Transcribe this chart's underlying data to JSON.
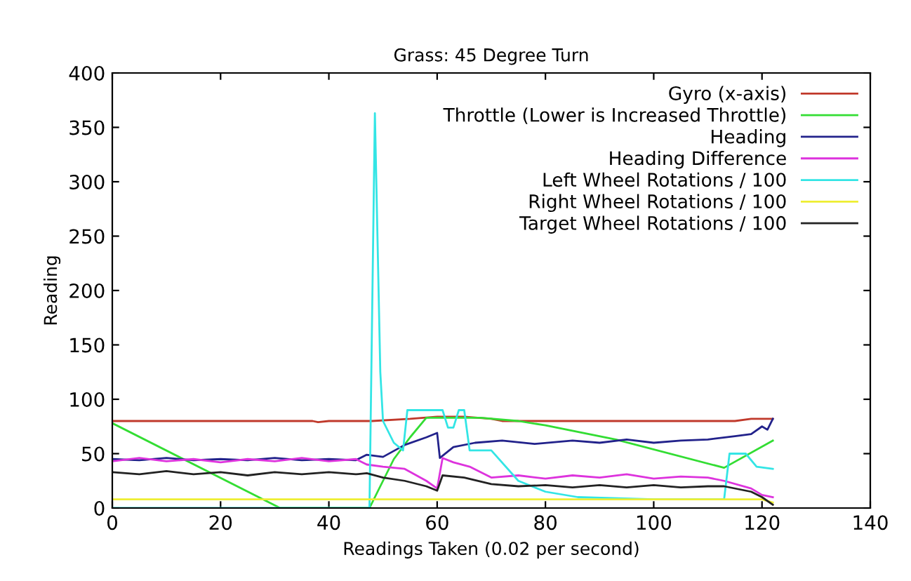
{
  "chart_data": {
    "type": "line",
    "title": "Grass: 45 Degree Turn",
    "xlabel": "Readings Taken (0.02 per second)",
    "ylabel": "Reading",
    "xlim": [
      0,
      140
    ],
    "ylim": [
      0,
      400
    ],
    "xticks": [
      0,
      20,
      40,
      60,
      80,
      100,
      120,
      140
    ],
    "yticks": [
      0,
      50,
      100,
      150,
      200,
      250,
      300,
      350,
      400
    ],
    "grid": false,
    "legend": "top right",
    "marker": "none",
    "line_style": "solid",
    "series": [
      {
        "name": "Gyro (x-axis)",
        "color": "#c0392b",
        "x": [
          0,
          37,
          38,
          40,
          48,
          55,
          60,
          65,
          70,
          72,
          80,
          100,
          115,
          118,
          122
        ],
        "values": [
          80,
          80,
          79,
          80,
          80,
          82,
          84,
          84,
          82,
          80,
          80,
          80,
          80,
          82,
          82
        ]
      },
      {
        "name": "Throttle (Lower is Increased Throttle)",
        "color": "#33dd33",
        "x": [
          0,
          31,
          47.5,
          50,
          52,
          55,
          58,
          68,
          75,
          80,
          93,
          113,
          122
        ],
        "values": [
          78,
          0,
          0,
          25,
          45,
          65,
          83,
          83,
          80,
          76,
          63,
          37,
          62
        ]
      },
      {
        "name": "Heading",
        "color": "#22228b",
        "x": [
          0,
          5,
          10,
          15,
          20,
          25,
          30,
          35,
          40,
          45,
          47,
          50,
          54,
          58,
          60,
          60.5,
          63,
          67,
          72,
          78,
          85,
          90,
          95,
          100,
          105,
          110,
          115,
          118,
          120,
          121,
          122
        ],
        "values": [
          45,
          44,
          46,
          44,
          45,
          44,
          46,
          44,
          45,
          44,
          49,
          47,
          58,
          65,
          69,
          46,
          56,
          60,
          62,
          59,
          62,
          60,
          63,
          60,
          62,
          63,
          66,
          68,
          75,
          72,
          82
        ]
      },
      {
        "name": "Heading Difference",
        "color": "#dd33dd",
        "x": [
          0,
          5,
          10,
          15,
          20,
          25,
          30,
          35,
          40,
          45,
          47,
          50,
          54,
          58,
          60,
          61,
          63,
          66,
          70,
          75,
          80,
          85,
          90,
          95,
          100,
          105,
          110,
          113,
          118,
          120,
          122
        ],
        "values": [
          43,
          46,
          43,
          45,
          42,
          45,
          43,
          46,
          43,
          45,
          40,
          38,
          36,
          25,
          18,
          46,
          42,
          38,
          28,
          30,
          27,
          30,
          28,
          31,
          27,
          29,
          28,
          25,
          18,
          12,
          10
        ]
      },
      {
        "name": "Left Wheel Rotations / 100",
        "color": "#33e5e5",
        "x": [
          0,
          47.5,
          48.5,
          49.5,
          50,
          52,
          53.7,
          54.5,
          61,
          62,
          63,
          64,
          65,
          66,
          70,
          75,
          80,
          86,
          100,
          113,
          114,
          117,
          119,
          122
        ],
        "values": [
          0,
          0,
          363,
          125,
          80,
          60,
          53,
          90,
          90,
          74,
          74,
          90,
          90,
          53,
          53,
          25,
          15,
          10,
          8,
          8,
          50,
          50,
          38,
          36
        ]
      },
      {
        "name": "Right Wheel Rotations / 100",
        "color": "#eeee33",
        "x": [
          0,
          113,
          120,
          122
        ],
        "values": [
          8,
          8,
          8,
          5
        ]
      },
      {
        "name": "Target Wheel Rotations / 100",
        "color": "#222222",
        "x": [
          0,
          5,
          10,
          15,
          20,
          25,
          30,
          35,
          40,
          45,
          47,
          50,
          54,
          58,
          60,
          61,
          65,
          70,
          75,
          80,
          85,
          90,
          95,
          100,
          105,
          110,
          113,
          118,
          120,
          122
        ],
        "values": [
          33,
          31,
          34,
          31,
          33,
          30,
          33,
          31,
          33,
          31,
          32,
          28,
          25,
          20,
          16,
          30,
          28,
          22,
          20,
          21,
          19,
          21,
          19,
          21,
          19,
          20,
          20,
          15,
          10,
          3
        ]
      }
    ]
  }
}
